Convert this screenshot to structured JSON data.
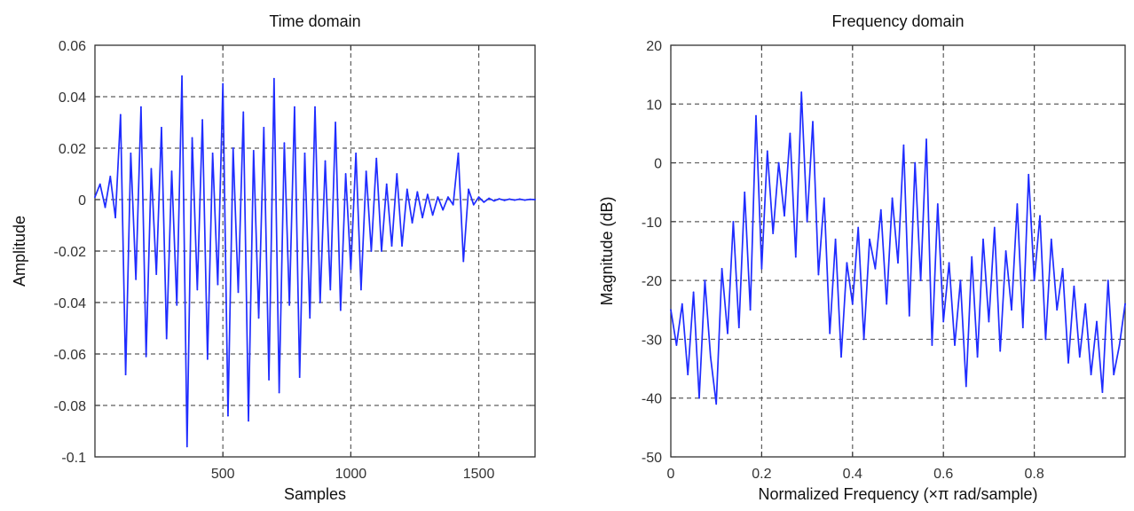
{
  "figure": {
    "colors": {
      "series": "#1f2cff",
      "grid": "#5f5f5f",
      "axis": "#333333",
      "text": "#111111"
    }
  },
  "chart_data": [
    {
      "type": "line",
      "title": "Time domain",
      "xlabel": "Samples",
      "ylabel": "Amplitude",
      "xlim": [
        0,
        1720
      ],
      "ylim": [
        -0.1,
        0.06
      ],
      "xticks": [
        500,
        1000,
        1500
      ],
      "xtick_labels": [
        "500",
        "1000",
        "1500"
      ],
      "yticks": [
        0.06,
        0.04,
        0.02,
        0,
        -0.02,
        -0.04,
        -0.06,
        -0.08,
        -0.1
      ],
      "ytick_labels": [
        "0.06",
        "0.04",
        "0.02",
        "0",
        "-0.02",
        "-0.04",
        "-0.06",
        "-0.08",
        "-0.1"
      ],
      "grid": true,
      "series": [
        {
          "x": [
            0,
            20,
            40,
            60,
            80,
            100,
            120,
            140,
            160,
            180,
            200,
            220,
            240,
            260,
            280,
            300,
            320,
            340,
            360,
            380,
            400,
            420,
            440,
            460,
            480,
            500,
            520,
            540,
            560,
            580,
            600,
            620,
            640,
            660,
            680,
            700,
            720,
            740,
            760,
            780,
            800,
            820,
            840,
            860,
            880,
            900,
            920,
            940,
            960,
            980,
            1000,
            1020,
            1040,
            1060,
            1080,
            1100,
            1120,
            1140,
            1160,
            1180,
            1200,
            1220,
            1240,
            1260,
            1280,
            1300,
            1320,
            1340,
            1360,
            1380,
            1400,
            1420,
            1440,
            1460,
            1480,
            1500,
            1520,
            1540,
            1560,
            1580,
            1600,
            1620,
            1640,
            1660,
            1680,
            1700,
            1720
          ],
          "y": [
            0.001,
            0.006,
            -0.003,
            0.009,
            -0.007,
            0.033,
            -0.068,
            0.018,
            -0.031,
            0.036,
            -0.061,
            0.012,
            -0.029,
            0.028,
            -0.054,
            0.011,
            -0.041,
            0.048,
            -0.096,
            0.024,
            -0.035,
            0.031,
            -0.062,
            0.018,
            -0.033,
            0.045,
            -0.084,
            0.02,
            -0.036,
            0.034,
            -0.086,
            0.019,
            -0.046,
            0.028,
            -0.07,
            0.047,
            -0.075,
            0.022,
            -0.041,
            0.036,
            -0.069,
            0.018,
            -0.046,
            0.036,
            -0.04,
            0.015,
            -0.035,
            0.03,
            -0.043,
            0.01,
            -0.027,
            0.018,
            -0.035,
            0.011,
            -0.02,
            0.016,
            -0.02,
            0.006,
            -0.018,
            0.01,
            -0.018,
            0.004,
            -0.009,
            0.003,
            -0.007,
            0.002,
            -0.006,
            0.001,
            -0.004,
            0.001,
            -0.002,
            0.018,
            -0.024,
            0.004,
            -0.002,
            0.001,
            -0.001,
            0.0005,
            -0.0005,
            0.0003,
            -0.0003,
            0.0002,
            -0.0002,
            0.0002,
            -0.0002,
            0.0001,
            0
          ]
        }
      ]
    },
    {
      "type": "line",
      "title": "Frequency domain",
      "xlabel": "Normalized Frequency  (×π rad/sample)",
      "ylabel": "Magnitude (dB)",
      "xlim": [
        0,
        1
      ],
      "ylim": [
        -50,
        20
      ],
      "xticks": [
        0,
        0.2,
        0.4,
        0.6,
        0.8
      ],
      "xtick_labels": [
        "0",
        "0.2",
        "0.4",
        "0.6",
        "0.8"
      ],
      "yticks": [
        20,
        10,
        0,
        -10,
        -20,
        -30,
        -40,
        -50
      ],
      "ytick_labels": [
        "20",
        "10",
        "0",
        "-10",
        "-20",
        "-30",
        "-40",
        "-50"
      ],
      "grid": true,
      "series": [
        {
          "x": [
            0.0,
            0.0125,
            0.025,
            0.0375,
            0.05,
            0.0625,
            0.075,
            0.0875,
            0.1,
            0.1125,
            0.125,
            0.1375,
            0.15,
            0.1625,
            0.175,
            0.1875,
            0.2,
            0.2125,
            0.225,
            0.2375,
            0.25,
            0.2625,
            0.275,
            0.2875,
            0.3,
            0.3125,
            0.325,
            0.3375,
            0.35,
            0.3625,
            0.375,
            0.3875,
            0.4,
            0.4125,
            0.425,
            0.4375,
            0.45,
            0.4625,
            0.475,
            0.4875,
            0.5,
            0.5125,
            0.525,
            0.5375,
            0.55,
            0.5625,
            0.575,
            0.5875,
            0.6,
            0.6125,
            0.625,
            0.6375,
            0.65,
            0.6625,
            0.675,
            0.6875,
            0.7,
            0.7125,
            0.725,
            0.7375,
            0.75,
            0.7625,
            0.775,
            0.7875,
            0.8,
            0.8125,
            0.825,
            0.8375,
            0.85,
            0.8625,
            0.875,
            0.8875,
            0.9,
            0.9125,
            0.925,
            0.9375,
            0.95,
            0.9625,
            0.975,
            0.9875,
            1.0
          ],
          "y": [
            -25,
            -31,
            -24,
            -36,
            -22,
            -40,
            -20,
            -33,
            -41,
            -18,
            -29,
            -10,
            -28,
            -5,
            -25,
            8,
            -18,
            2,
            -12,
            0,
            -9,
            5,
            -16,
            12,
            -10,
            7,
            -19,
            -6,
            -29,
            -13,
            -33,
            -17,
            -24,
            -11,
            -30,
            -13,
            -18,
            -8,
            -24,
            -6,
            -17,
            3,
            -26,
            0,
            -20,
            4,
            -31,
            -7,
            -27,
            -17,
            -31,
            -20,
            -38,
            -16,
            -33,
            -13,
            -27,
            -11,
            -32,
            -15,
            -25,
            -7,
            -28,
            -2,
            -20,
            -9,
            -30,
            -13,
            -25,
            -18,
            -34,
            -21,
            -33,
            -24,
            -36,
            -27,
            -39,
            -20,
            -36,
            -31,
            -24
          ]
        }
      ]
    }
  ]
}
